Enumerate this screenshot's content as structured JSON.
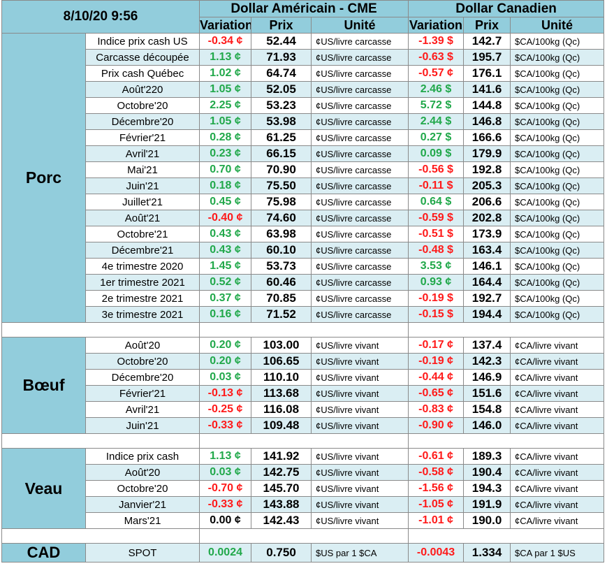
{
  "header": {
    "date": "8/10/20 9:56",
    "usd_group": "Dollar Américain - CME",
    "cad_group": "Dollar Canadien",
    "col_variation": "Variation",
    "col_prix": "Prix",
    "col_unite": "Unité"
  },
  "sections": [
    {
      "name": "Porc",
      "rows": [
        {
          "label": "Indice prix cash US",
          "us_var": "-0.34 ¢",
          "us_price": "52.44",
          "us_unit": "¢US/livre carcasse",
          "ca_var": "-1.39 $",
          "ca_price": "142.7",
          "ca_unit": "$CA/100kg (Qc)"
        },
        {
          "label": "Carcasse découpée",
          "us_var": "1.13 ¢",
          "us_price": "71.93",
          "us_unit": "¢US/livre carcasse",
          "ca_var": "-0.63 $",
          "ca_price": "195.7",
          "ca_unit": "$CA/100kg (Qc)"
        },
        {
          "label": "Prix cash Québec",
          "us_var": "1.02 ¢",
          "us_price": "64.74",
          "us_unit": "¢US/livre carcasse",
          "ca_var": "-0.57 ¢",
          "ca_price": "176.1",
          "ca_unit": "$CA/100kg (Qc)"
        },
        {
          "label": "Août'220",
          "us_var": "1.05 ¢",
          "us_price": "52.05",
          "us_unit": "¢US/livre carcasse",
          "ca_var": "2.46 $",
          "ca_price": "141.6",
          "ca_unit": "$CA/100kg (Qc)"
        },
        {
          "label": "Octobre'20",
          "us_var": "2.25 ¢",
          "us_price": "53.23",
          "us_unit": "¢US/livre carcasse",
          "ca_var": "5.72 $",
          "ca_price": "144.8",
          "ca_unit": "$CA/100kg (Qc)"
        },
        {
          "label": "Décembre'20",
          "us_var": "1.05 ¢",
          "us_price": "53.98",
          "us_unit": "¢US/livre carcasse",
          "ca_var": "2.44 $",
          "ca_price": "146.8",
          "ca_unit": "$CA/100kg (Qc)"
        },
        {
          "label": "Février'21",
          "us_var": "0.28 ¢",
          "us_price": "61.25",
          "us_unit": "¢US/livre carcasse",
          "ca_var": "0.27 $",
          "ca_price": "166.6",
          "ca_unit": "$CA/100kg (Qc)"
        },
        {
          "label": "Avril'21",
          "us_var": "0.23 ¢",
          "us_price": "66.15",
          "us_unit": "¢US/livre carcasse",
          "ca_var": "0.09 $",
          "ca_price": "179.9",
          "ca_unit": "$CA/100kg (Qc)"
        },
        {
          "label": "Mai'21",
          "us_var": "0.70 ¢",
          "us_price": "70.90",
          "us_unit": "¢US/livre carcasse",
          "ca_var": "-0.56 $",
          "ca_price": "192.8",
          "ca_unit": "$CA/100kg (Qc)"
        },
        {
          "label": "Juin'21",
          "us_var": "0.18 ¢",
          "us_price": "75.50",
          "us_unit": "¢US/livre carcasse",
          "ca_var": "-0.11 $",
          "ca_price": "205.3",
          "ca_unit": "$CA/100kg (Qc)"
        },
        {
          "label": "Juillet'21",
          "us_var": "0.45 ¢",
          "us_price": "75.98",
          "us_unit": "¢US/livre carcasse",
          "ca_var": "0.64 $",
          "ca_price": "206.6",
          "ca_unit": "$CA/100kg (Qc)"
        },
        {
          "label": "Août'21",
          "us_var": "-0.40 ¢",
          "us_price": "74.60",
          "us_unit": "¢US/livre carcasse",
          "ca_var": "-0.59 $",
          "ca_price": "202.8",
          "ca_unit": "$CA/100kg (Qc)"
        },
        {
          "label": "Octobre'21",
          "us_var": "0.43 ¢",
          "us_price": "63.98",
          "us_unit": "¢US/livre carcasse",
          "ca_var": "-0.51 $",
          "ca_price": "173.9",
          "ca_unit": "$CA/100kg (Qc)"
        },
        {
          "label": "Décembre'21",
          "us_var": "0.43 ¢",
          "us_price": "60.10",
          "us_unit": "¢US/livre carcasse",
          "ca_var": "-0.48 $",
          "ca_price": "163.4",
          "ca_unit": "$CA/100kg (Qc)"
        },
        {
          "label": "4e trimestre 2020",
          "us_var": "1.45 ¢",
          "us_price": "53.73",
          "us_unit": "¢US/livre carcasse",
          "ca_var": "3.53 ¢",
          "ca_price": "146.1",
          "ca_unit": "$CA/100kg (Qc)"
        },
        {
          "label": "1er trimestre 2021",
          "us_var": "0.52 ¢",
          "us_price": "60.46",
          "us_unit": "¢US/livre carcasse",
          "ca_var": "0.93 ¢",
          "ca_price": "164.4",
          "ca_unit": "$CA/100kg (Qc)"
        },
        {
          "label": "2e trimestre 2021",
          "us_var": "0.37 ¢",
          "us_price": "70.85",
          "us_unit": "¢US/livre carcasse",
          "ca_var": "-0.19 $",
          "ca_price": "192.7",
          "ca_unit": "$CA/100kg (Qc)"
        },
        {
          "label": "3e trimestre 2021",
          "us_var": "0.16 ¢",
          "us_price": "71.52",
          "us_unit": "¢US/livre carcasse",
          "ca_var": "-0.15 $",
          "ca_price": "194.4",
          "ca_unit": "$CA/100kg (Qc)"
        }
      ]
    },
    {
      "name": "Bœuf",
      "rows": [
        {
          "label": "Août'20",
          "us_var": "0.20 ¢",
          "us_price": "103.00",
          "us_unit": "¢US/livre vivant",
          "ca_var": "-0.17 ¢",
          "ca_price": "137.4",
          "ca_unit": "¢CA/livre vivant"
        },
        {
          "label": "Octobre'20",
          "us_var": "0.20 ¢",
          "us_price": "106.65",
          "us_unit": "¢US/livre vivant",
          "ca_var": "-0.19 ¢",
          "ca_price": "142.3",
          "ca_unit": "¢CA/livre vivant"
        },
        {
          "label": "Décembre'20",
          "us_var": "0.03 ¢",
          "us_price": "110.10",
          "us_unit": "¢US/livre vivant",
          "ca_var": "-0.44 ¢",
          "ca_price": "146.9",
          "ca_unit": "¢CA/livre vivant"
        },
        {
          "label": "Février'21",
          "us_var": "-0.13 ¢",
          "us_price": "113.68",
          "us_unit": "¢US/livre vivant",
          "ca_var": "-0.65 ¢",
          "ca_price": "151.6",
          "ca_unit": "¢CA/livre vivant"
        },
        {
          "label": "Avril'21",
          "us_var": "-0.25 ¢",
          "us_price": "116.08",
          "us_unit": "¢US/livre vivant",
          "ca_var": "-0.83 ¢",
          "ca_price": "154.8",
          "ca_unit": "¢CA/livre vivant"
        },
        {
          "label": "Juin'21",
          "us_var": "-0.33 ¢",
          "us_price": "109.48",
          "us_unit": "¢US/livre vivant",
          "ca_var": "-0.90 ¢",
          "ca_price": "146.0",
          "ca_unit": "¢CA/livre vivant"
        }
      ]
    },
    {
      "name": "Veau",
      "rows": [
        {
          "label": "Indice prix cash",
          "us_var": "1.13 ¢",
          "us_price": "141.92",
          "us_unit": "¢US/livre vivant",
          "ca_var": "-0.61 ¢",
          "ca_price": "189.3",
          "ca_unit": "¢CA/livre vivant"
        },
        {
          "label": "Août'20",
          "us_var": "0.03 ¢",
          "us_price": "142.75",
          "us_unit": "¢US/livre vivant",
          "ca_var": "-0.58 ¢",
          "ca_price": "190.4",
          "ca_unit": "¢CA/livre vivant"
        },
        {
          "label": "Octobre'20",
          "us_var": "-0.70 ¢",
          "us_price": "145.70",
          "us_unit": "¢US/livre vivant",
          "ca_var": "-1.56 ¢",
          "ca_price": "194.3",
          "ca_unit": "¢CA/livre vivant"
        },
        {
          "label": "Janvier'21",
          "us_var": "-0.33 ¢",
          "us_price": "143.88",
          "us_unit": "¢US/livre vivant",
          "ca_var": "-1.05 ¢",
          "ca_price": "191.9",
          "ca_unit": "¢CA/livre vivant"
        },
        {
          "label": "Mars'21",
          "us_var": "0.00 ¢",
          "us_price": "142.43",
          "us_unit": "¢US/livre vivant",
          "ca_var": "-1.01 ¢",
          "ca_price": "190.0",
          "ca_unit": "¢CA/livre vivant"
        }
      ]
    }
  ],
  "cad": {
    "name": "CAD",
    "label": "SPOT",
    "us_var": "0.0024",
    "us_price": "0.750",
    "us_unit": "$US par 1 $CA",
    "ca_var": "-0.0043",
    "ca_price": "1.334",
    "ca_unit": "$CA par 1 $US"
  },
  "colors": {
    "header_bg": "#92cddc",
    "band_bg": "#daeef3",
    "positive": "#21a84a",
    "negative": "#ff1a1a"
  }
}
